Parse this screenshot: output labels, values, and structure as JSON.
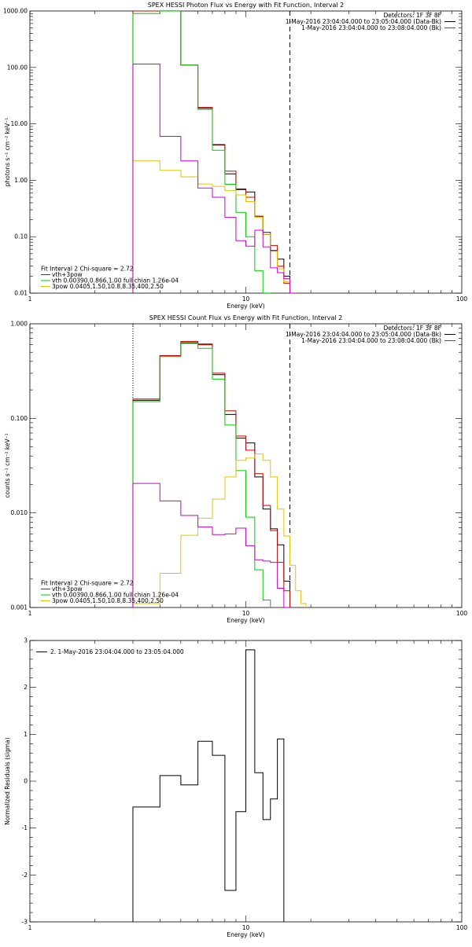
{
  "colors": {
    "data": "#000000",
    "vth_3pow": "#cc0000",
    "vth": "#00cc00",
    "pow": "#e6c200",
    "bk": "#cc00cc",
    "axis": "#000000"
  },
  "chart_data": [
    {
      "type": "line",
      "title": "SPEX HESSI Photon Flux vs Energy with Fit Function, Interval 2",
      "xlabel": "Energy (keV)",
      "ylabel": "photons s⁻¹ cm⁻² keV⁻¹",
      "xscale": "log",
      "yscale": "log",
      "xlim": [
        1,
        100
      ],
      "ylim": [
        0.01,
        1000
      ],
      "xticks": [
        {
          "v": 1,
          "label": "1"
        },
        {
          "v": 10,
          "label": "10"
        },
        {
          "v": 100,
          "label": "100"
        }
      ],
      "yticks": [
        {
          "v": 0.01,
          "label": "0.01"
        },
        {
          "v": 0.1,
          "label": "0.10"
        },
        {
          "v": 1,
          "label": "1.00"
        },
        {
          "v": 10,
          "label": "10.00"
        },
        {
          "v": 100,
          "label": "100.00"
        },
        {
          "v": 1000,
          "label": "1000.00"
        }
      ],
      "edges": [
        3,
        4,
        5,
        6,
        7,
        8,
        9,
        10,
        11,
        12,
        13,
        14,
        15,
        16,
        17,
        18
      ],
      "series": [
        {
          "name": "Data",
          "color": "data",
          "values": [
            1000,
            1000,
            110,
            19,
            4.2,
            1.3,
            0.7,
            0.62,
            0.23,
            0.11,
            0.057,
            0.04,
            0.02
          ]
        },
        {
          "name": "vth+3pow",
          "color": "vth_3pow",
          "values": [
            1000,
            1000,
            110,
            19.5,
            4.3,
            1.45,
            0.68,
            0.5,
            0.23,
            0.12,
            0.07,
            0.03,
            0.015
          ]
        },
        {
          "name": "vth",
          "color": "vth",
          "values": [
            900,
            1000,
            110,
            18,
            3.4,
            0.85,
            0.27,
            0.1,
            0.025,
            0.006
          ]
        },
        {
          "name": "3pow",
          "color": "pow",
          "values": [
            2.2,
            1.5,
            1.15,
            0.86,
            0.78,
            0.66,
            0.55,
            0.42,
            0.22,
            0.11,
            0.055,
            0.027,
            0.016,
            0.01
          ]
        },
        {
          "name": "bk",
          "color": "bk",
          "values": [
            115,
            6.0,
            2.2,
            0.73,
            0.5,
            0.22,
            0.085,
            0.068,
            0.13,
            0.066,
            0.028,
            0.023,
            0.018,
            0.01
          ]
        }
      ],
      "vlines": [
        {
          "x": 3,
          "style": "dotted",
          "color": "pow"
        },
        {
          "x": 16,
          "style": "dashed"
        }
      ],
      "legend_top": [
        {
          "text": "Detectors: 1F 3F 8F",
          "color": null
        },
        {
          "text": "1-May-2016 23:04:04.000 to 23:05:04.000 (Data-Bk)",
          "color": "data"
        },
        {
          "text": "1-May-2016 23:04:04.000 to 23:08:04.000 (Bk)",
          "color": "bk"
        }
      ],
      "legend_bottom": [
        {
          "text": "Fit Interval 2   Chi-square = 2.72",
          "color": null
        },
        {
          "text": "vth+3pow",
          "color": "vth_3pow"
        },
        {
          "text": "vth 0.00390,0.866,1.00  full chian 1.26e-04",
          "color": "vth"
        },
        {
          "text": "3pow 0.0405,1.50,10.8,8.35,400,2.50",
          "color": "pow"
        }
      ]
    },
    {
      "type": "line",
      "title": "SPEX HESSI Count Flux vs Energy with Fit Function, Interval 2",
      "xlabel": "Energy (keV)",
      "ylabel": "counts s⁻¹ cm⁻² keV⁻¹",
      "xscale": "log",
      "yscale": "log",
      "xlim": [
        1,
        100
      ],
      "ylim": [
        0.001,
        1
      ],
      "xticks": [
        {
          "v": 1,
          "label": "1"
        },
        {
          "v": 10,
          "label": "10"
        },
        {
          "v": 100,
          "label": "100"
        }
      ],
      "yticks": [
        {
          "v": 0.001,
          "label": "0.001"
        },
        {
          "v": 0.01,
          "label": "0.010"
        },
        {
          "v": 0.1,
          "label": "0.100"
        },
        {
          "v": 1,
          "label": "1.000"
        }
      ],
      "edges": [
        3,
        4,
        5,
        6,
        7,
        8,
        9,
        10,
        11,
        12,
        13,
        14,
        15,
        16,
        17,
        18,
        19
      ],
      "series": [
        {
          "name": "Data",
          "color": "data",
          "values": [
            0.155,
            0.46,
            0.63,
            0.61,
            0.29,
            0.11,
            0.062,
            0.055,
            0.024,
            0.011,
            0.0068,
            0.0046,
            0.0019
          ]
        },
        {
          "name": "vth+3pow",
          "color": "vth_3pow",
          "values": [
            0.16,
            0.46,
            0.65,
            0.6,
            0.3,
            0.12,
            0.065,
            0.046,
            0.026,
            0.012,
            0.0065,
            0.003,
            0.0015
          ]
        },
        {
          "name": "vth",
          "color": "vth",
          "values": [
            0.15,
            0.45,
            0.62,
            0.55,
            0.26,
            0.085,
            0.028,
            0.009,
            0.0025,
            0.0012
          ]
        },
        {
          "name": "3pow",
          "color": "pow",
          "values": [
            0.0011,
            0.0023,
            0.0058,
            0.0088,
            0.014,
            0.024,
            0.036,
            0.038,
            0.042,
            0.036,
            0.024,
            0.011,
            0.0057,
            0.0028,
            0.0015,
            0.0011
          ]
        },
        {
          "name": "bk",
          "color": "bk",
          "values": [
            0.0205,
            0.0134,
            0.0094,
            0.0071,
            0.0059,
            0.006,
            0.0069,
            0.0045,
            0.0032,
            0.0031,
            0.003,
            0.0016,
            0.001
          ]
        }
      ],
      "vlines": [
        {
          "x": 3,
          "style": "dotted"
        },
        {
          "x": 16,
          "style": "dashed"
        }
      ],
      "legend_top": [
        {
          "text": "Detectors: 1F 3F 8F",
          "color": null
        },
        {
          "text": "1-May-2016 23:04:04.000 to 23:05:04.000 (Data-Bk)",
          "color": "data"
        },
        {
          "text": "1-May-2016 23:04:04.000 to 23:08:04.000 (Bk)",
          "color": "bk"
        }
      ],
      "legend_bottom": [
        {
          "text": "Fit Interval 2   Chi-square = 2.72",
          "color": null
        },
        {
          "text": "vth+3pow",
          "color": "vth_3pow"
        },
        {
          "text": "vth 0.00390,0.866,1.00  full chian 1.26e-04",
          "color": "vth"
        },
        {
          "text": "3pow 0.0405,1.50,10.8,8.35,400,2.50",
          "color": "pow"
        }
      ]
    },
    {
      "type": "line",
      "title": "",
      "xlabel": "Energy (keV)",
      "ylabel": "Normalized Residuals (sigma)",
      "xscale": "log",
      "yscale": "linear",
      "xlim": [
        1,
        100
      ],
      "ylim": [
        -3,
        3
      ],
      "xticks": [
        {
          "v": 1,
          "label": "1"
        },
        {
          "v": 10,
          "label": "10"
        },
        {
          "v": 100,
          "label": "100"
        }
      ],
      "yticks": [
        {
          "v": -3,
          "label": "-3"
        },
        {
          "v": -2,
          "label": "-2"
        },
        {
          "v": -1,
          "label": "-1"
        },
        {
          "v": 0,
          "label": "0"
        },
        {
          "v": 1,
          "label": "1"
        },
        {
          "v": 2,
          "label": "2"
        },
        {
          "v": 3,
          "label": "3"
        }
      ],
      "edges": [
        3,
        4,
        5,
        6,
        7,
        8,
        9,
        10,
        11,
        12,
        13,
        14,
        15,
        16
      ],
      "series": [
        {
          "name": "2.  1-May-2016 23:04:04.000 to 23:05:04.000",
          "color": "data",
          "values": [
            -0.55,
            0.12,
            -0.08,
            0.85,
            0.55,
            -2.33,
            -0.65,
            2.8,
            0.18,
            -0.82,
            -0.38,
            0.9
          ]
        }
      ],
      "vlines": [],
      "legend_top": [],
      "legend_bottom": []
    }
  ]
}
